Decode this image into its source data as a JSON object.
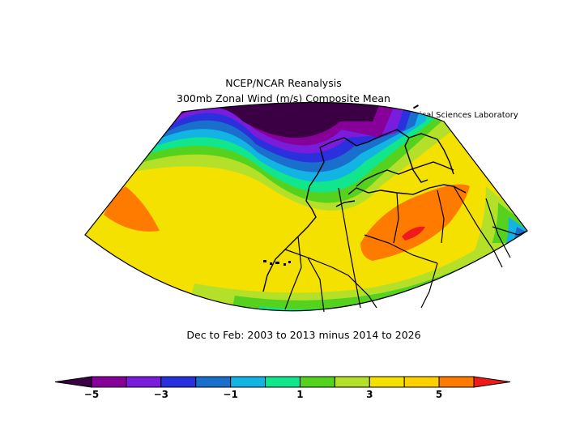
{
  "header": {
    "title_line1": "NCEP/NCAR Reanalysis",
    "title_line2": "300mb Zonal Wind (m/s) Composite Mean",
    "credit": "NOAA Physical Sciences Laboratory"
  },
  "subtitle": "Dec to Feb: 2003 to 2013 minus 2014 to 2026",
  "colorbar": {
    "colors": [
      "#3a0043",
      "#87009a",
      "#7a1cdc",
      "#2a30dc",
      "#1a6ecc",
      "#12b4e4",
      "#12e68c",
      "#55d21e",
      "#b4e02a",
      "#f4e100",
      "#ffd000",
      "#ff7b00",
      "#f01a1a"
    ],
    "tick_labels": [
      "−5",
      "−3",
      "−1",
      "1",
      "3",
      "5"
    ]
  },
  "map": {
    "variable": "300mb Zonal Wind anomaly",
    "units": "m/s",
    "band_colors": [
      "#3a0043",
      "#87009a",
      "#7a1cdc",
      "#2a30dc",
      "#1a6ecc",
      "#12b4e4",
      "#12e68c",
      "#55d21e",
      "#b4e02a",
      "#f4e100",
      "#ff7b00",
      "#f01a1a"
    ]
  }
}
